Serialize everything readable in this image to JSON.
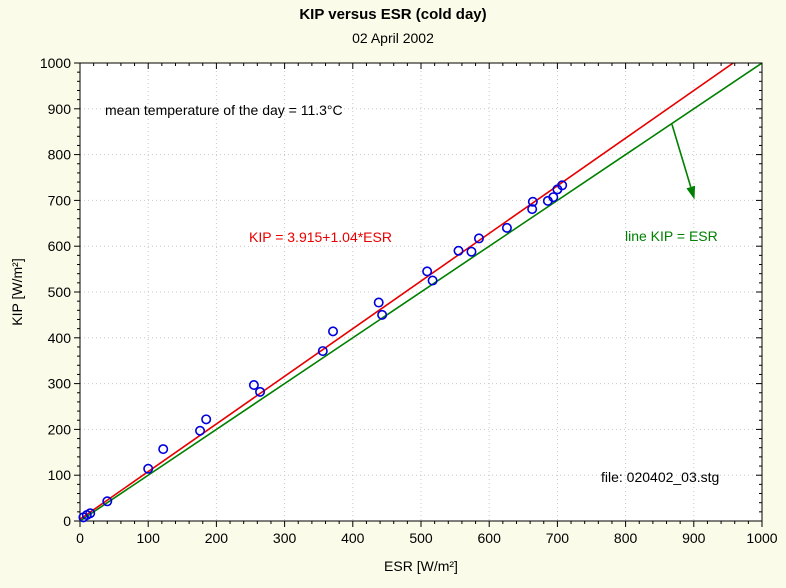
{
  "title": "KIP versus ESR (cold day)",
  "subtitle": "02 April 2002",
  "annotations": {
    "mean_temp": "mean temperature of the day = 11.3°C",
    "regression_eq": "KIP = 3.915+1.04*ESR",
    "identity_label": "line KIP = ESR",
    "file_label": "file: 020402_03.stg"
  },
  "colors": {
    "background": "#FBFBE9",
    "plot_bg": "#FFFFFF",
    "grid": "#C8C8C8",
    "axis": "#000000",
    "points": "#0000DD",
    "regression": "#E80000",
    "identity": "#008000"
  },
  "chart_data": {
    "type": "scatter",
    "title": "KIP versus ESR (cold day)",
    "subtitle": "02 April 2002",
    "xlabel": "ESR [W/m²]",
    "ylabel": "KIP [W/m²]",
    "xlim": [
      0,
      1000
    ],
    "ylim": [
      0,
      1000
    ],
    "major_tick_step": 100,
    "minor_tick_step": 20,
    "grid": "dotted",
    "legend_position": "none",
    "points": [
      [
        5,
        8
      ],
      [
        10,
        13
      ],
      [
        15,
        17
      ],
      [
        40,
        43
      ],
      [
        100,
        114
      ],
      [
        122,
        157
      ],
      [
        176,
        197
      ],
      [
        185,
        222
      ],
      [
        255,
        297
      ],
      [
        264,
        282
      ],
      [
        356,
        371
      ],
      [
        371,
        414
      ],
      [
        438,
        477
      ],
      [
        443,
        450
      ],
      [
        509,
        545
      ],
      [
        517,
        525
      ],
      [
        555,
        590
      ],
      [
        574,
        588
      ],
      [
        585,
        617
      ],
      [
        626,
        640
      ],
      [
        663,
        681
      ],
      [
        664,
        697
      ],
      [
        686,
        699
      ],
      [
        694,
        707
      ],
      [
        700,
        724
      ],
      [
        707,
        733
      ]
    ],
    "lines": [
      {
        "name": "regression",
        "label": "KIP = 3.915+1.04*ESR",
        "intercept": 3.915,
        "slope": 1.04
      },
      {
        "name": "identity",
        "label": "line KIP = ESR",
        "intercept": 0,
        "slope": 1.0
      }
    ],
    "arrow": {
      "from_xy": [
        868,
        866
      ],
      "to_xy": [
        901,
        702
      ]
    }
  }
}
